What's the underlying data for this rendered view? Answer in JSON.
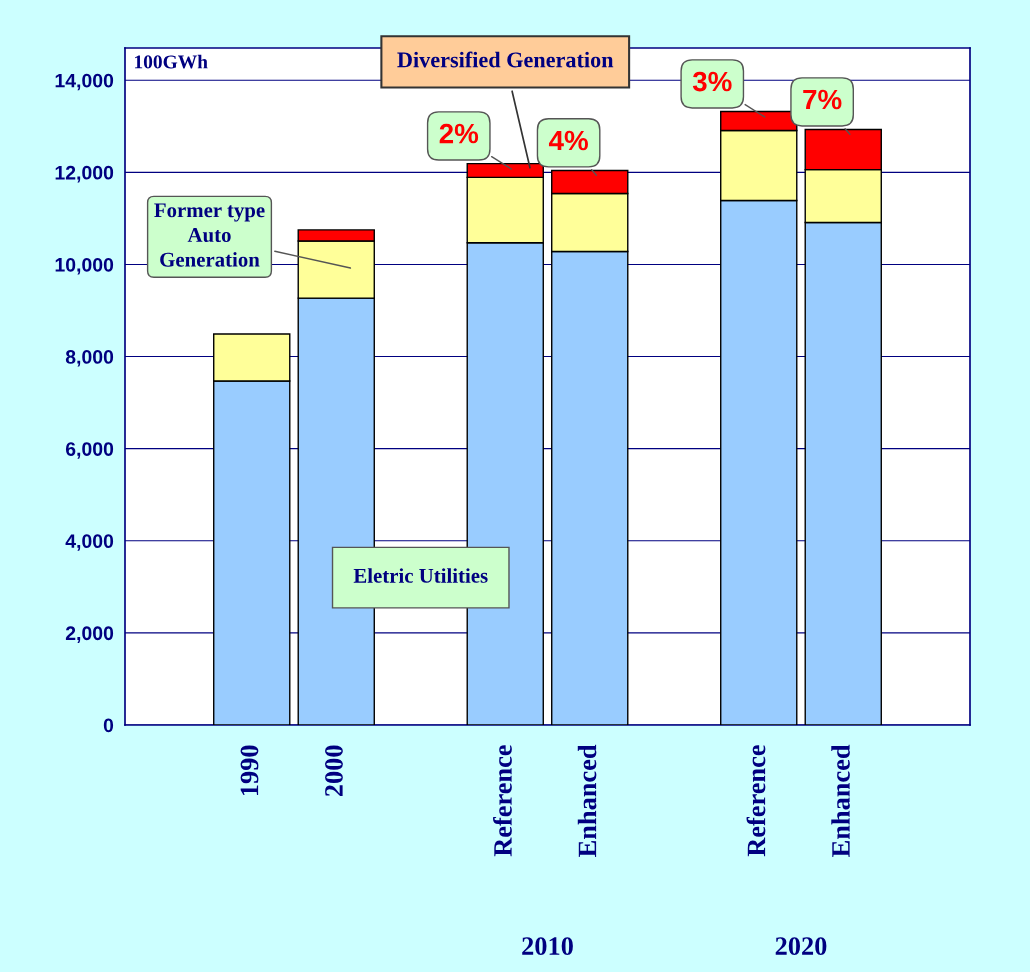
{
  "chart_data": {
    "type": "bar",
    "stacked": true,
    "ylabel": "100GWh",
    "categories": [
      null,
      "1990",
      "2000",
      null,
      "Reference",
      "Enhanced",
      null,
      "Reference",
      "Enhanced",
      null
    ],
    "series": [
      {
        "name": "Eletric Utilities",
        "color": "#99ccff",
        "values": [
          null,
          7470,
          9270,
          null,
          10470,
          10280,
          null,
          11390,
          10910,
          null
        ]
      },
      {
        "name": "Former type Auto Generation",
        "color": "#ffff99",
        "values": [
          null,
          1020,
          1240,
          null,
          1420,
          1260,
          null,
          1520,
          1150,
          null
        ]
      },
      {
        "name": "Diversified Generation",
        "color": "#ff0000",
        "values": [
          null,
          null,
          240,
          null,
          300,
          500,
          null,
          410,
          870,
          null
        ]
      }
    ],
    "ylim": [
      0,
      14700
    ],
    "yticks": [
      {
        "value": 0,
        "label": "0"
      },
      {
        "value": 2000,
        "label": "2,000"
      },
      {
        "value": 4000,
        "label": "4,000"
      },
      {
        "value": 6000,
        "label": "6,000"
      },
      {
        "value": 8000,
        "label": "8,000"
      },
      {
        "value": 10000,
        "label": "10,000"
      },
      {
        "value": 12000,
        "label": "12,000"
      },
      {
        "value": 14000,
        "label": "14,000"
      }
    ],
    "grid": "y",
    "legend": false,
    "annotations": [
      "2%",
      "4%",
      "3%",
      "7%",
      "2010",
      "2020"
    ]
  }
}
